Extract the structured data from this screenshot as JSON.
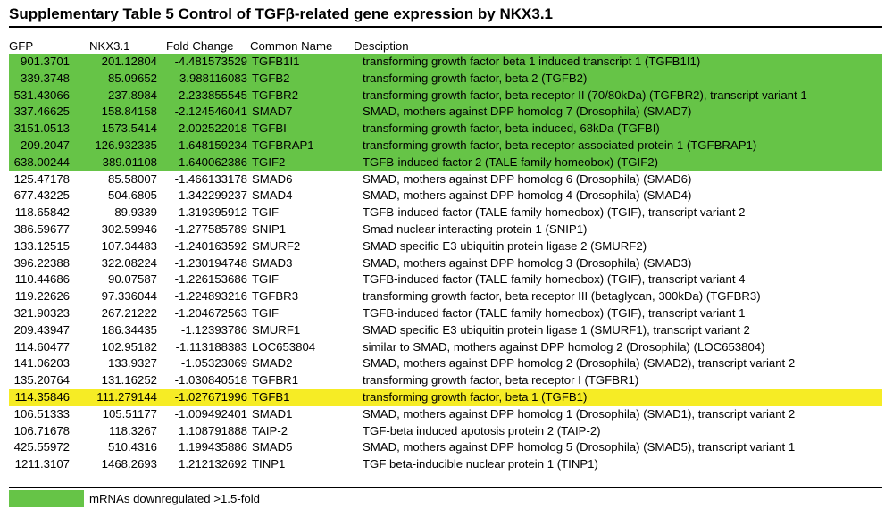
{
  "title_prefix": "Supplementary Table 5  Control of TGF",
  "title_beta": "β",
  "title_suffix": "-related gene expression by NKX3.1",
  "colors": {
    "downregulated": "#66c447",
    "highlight": "#f6ec25"
  },
  "columns": [
    "GFP",
    "NKX3.1",
    "Fold Change",
    "Common Name",
    "Desciption"
  ],
  "rows": [
    {
      "gfp": "901.3701",
      "nkx": "201.12804",
      "fc": "-4.481573529",
      "name": "TGFB1I1",
      "desc": "transforming growth factor beta 1 induced transcript 1 (TGFB1I1)",
      "hl": "green"
    },
    {
      "gfp": "339.3748",
      "nkx": "85.09652",
      "fc": "-3.988116083",
      "name": "TGFB2",
      "desc": "transforming growth factor, beta 2 (TGFB2)",
      "hl": "green"
    },
    {
      "gfp": "531.43066",
      "nkx": "237.8984",
      "fc": "-2.233855545",
      "name": "TGFBR2",
      "desc": "transforming growth factor, beta receptor II (70/80kDa) (TGFBR2), transcript variant 1",
      "hl": "green"
    },
    {
      "gfp": "337.46625",
      "nkx": "158.84158",
      "fc": "-2.124546041",
      "name": "SMAD7",
      "desc": "SMAD, mothers against DPP homolog 7 (Drosophila) (SMAD7)",
      "hl": "green"
    },
    {
      "gfp": "3151.0513",
      "nkx": "1573.5414",
      "fc": "-2.002522018",
      "name": "TGFBI",
      "desc": "transforming growth factor, beta-induced, 68kDa (TGFBI)",
      "hl": "green"
    },
    {
      "gfp": "209.2047",
      "nkx": "126.932335",
      "fc": "-1.648159234",
      "name": "TGFBRAP1",
      "desc": "transforming growth factor, beta receptor associated protein 1 (TGFBRAP1)",
      "hl": "green"
    },
    {
      "gfp": "638.00244",
      "nkx": "389.01108",
      "fc": "-1.640062386",
      "name": "TGIF2",
      "desc": "TGFB-induced factor 2 (TALE family homeobox) (TGIF2)",
      "hl": "green"
    },
    {
      "gfp": "125.47178",
      "nkx": "85.58007",
      "fc": "-1.466133178",
      "name": "SMAD6",
      "desc": "SMAD, mothers against DPP homolog 6 (Drosophila) (SMAD6)",
      "hl": ""
    },
    {
      "gfp": "677.43225",
      "nkx": "504.6805",
      "fc": "-1.342299237",
      "name": "SMAD4",
      "desc": "SMAD, mothers against DPP homolog 4 (Drosophila) (SMAD4)",
      "hl": ""
    },
    {
      "gfp": "118.65842",
      "nkx": "89.9339",
      "fc": "-1.319395912",
      "name": "TGIF",
      "desc": "TGFB-induced factor (TALE family homeobox) (TGIF), transcript variant 2",
      "hl": ""
    },
    {
      "gfp": "386.59677",
      "nkx": "302.59946",
      "fc": "-1.277585789",
      "name": "SNIP1",
      "desc": "Smad nuclear interacting protein 1 (SNIP1)",
      "hl": ""
    },
    {
      "gfp": "133.12515",
      "nkx": "107.34483",
      "fc": "-1.240163592",
      "name": "SMURF2",
      "desc": "SMAD specific E3 ubiquitin protein ligase 2 (SMURF2)",
      "hl": ""
    },
    {
      "gfp": "396.22388",
      "nkx": "322.08224",
      "fc": "-1.230194748",
      "name": "SMAD3",
      "desc": "SMAD, mothers against DPP homolog 3 (Drosophila) (SMAD3)",
      "hl": ""
    },
    {
      "gfp": "110.44686",
      "nkx": "90.07587",
      "fc": "-1.226153686",
      "name": "TGIF",
      "desc": "TGFB-induced factor (TALE family homeobox) (TGIF), transcript variant 4",
      "hl": ""
    },
    {
      "gfp": "119.22626",
      "nkx": "97.336044",
      "fc": "-1.224893216",
      "name": "TGFBR3",
      "desc": "transforming growth factor, beta receptor III (betaglycan, 300kDa) (TGFBR3)",
      "hl": ""
    },
    {
      "gfp": "321.90323",
      "nkx": "267.21222",
      "fc": "-1.204672563",
      "name": "TGIF",
      "desc": "TGFB-induced factor (TALE family homeobox) (TGIF), transcript variant 1",
      "hl": ""
    },
    {
      "gfp": "209.43947",
      "nkx": "186.34435",
      "fc": "-1.12393786",
      "name": "SMURF1",
      "desc": "SMAD specific E3 ubiquitin protein ligase 1 (SMURF1), transcript variant 2",
      "hl": ""
    },
    {
      "gfp": "114.60477",
      "nkx": "102.95182",
      "fc": "-1.113188383",
      "name": "LOC653804",
      "desc": "similar to SMAD, mothers against DPP homolog 2 (Drosophila) (LOC653804)",
      "hl": ""
    },
    {
      "gfp": "141.06203",
      "nkx": "133.9327",
      "fc": "-1.05323069",
      "name": "SMAD2",
      "desc": "SMAD, mothers against DPP homolog 2 (Drosophila) (SMAD2), transcript variant 2",
      "hl": ""
    },
    {
      "gfp": "135.20764",
      "nkx": "131.16252",
      "fc": "-1.030840518",
      "name": "TGFBR1",
      "desc": "transforming growth factor, beta receptor I (TGFBR1)",
      "hl": ""
    },
    {
      "gfp": "114.35846",
      "nkx": "111.279144",
      "fc": "-1.027671996",
      "name": "TGFB1",
      "desc": "transforming growth factor, beta 1  (TGFB1)",
      "hl": "yellow"
    },
    {
      "gfp": "106.51333",
      "nkx": "105.51177",
      "fc": "-1.009492401",
      "name": "SMAD1",
      "desc": "SMAD, mothers against DPP homolog 1 (Drosophila) (SMAD1), transcript variant 2",
      "hl": ""
    },
    {
      "gfp": "106.71678",
      "nkx": "118.3267",
      "fc": "1.108791888",
      "name": "TAIP-2",
      "desc": "TGF-beta induced apotosis protein 2 (TAIP-2)",
      "hl": ""
    },
    {
      "gfp": "425.55972",
      "nkx": "510.4316",
      "fc": "1.199435886",
      "name": "SMAD5",
      "desc": "SMAD, mothers against DPP homolog 5 (Drosophila) (SMAD5), transcript variant 1",
      "hl": ""
    },
    {
      "gfp": "1211.3107",
      "nkx": "1468.2693",
      "fc": "1.212132692",
      "name": "TINP1",
      "desc": "TGF beta-inducible nuclear protein 1 (TINP1)",
      "hl": ""
    }
  ],
  "legend_label": "mRNAs downregulated >1.5-fold"
}
